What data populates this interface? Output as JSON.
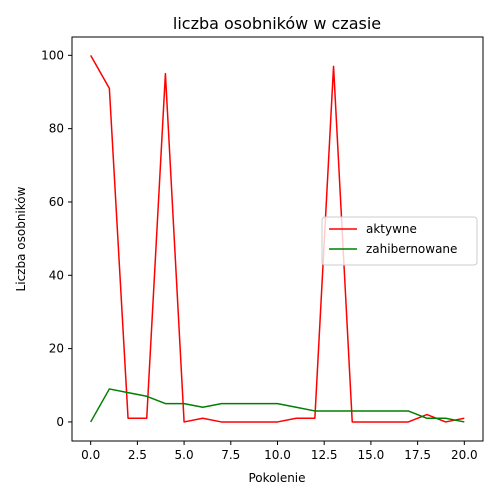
{
  "chart_data": {
    "type": "line",
    "title": "liczba osobników w czasie",
    "xlabel": "Pokolenie",
    "ylabel": "Liczba osobników",
    "x": [
      0,
      1,
      2,
      3,
      4,
      5,
      6,
      7,
      8,
      9,
      10,
      11,
      12,
      13,
      14,
      15,
      16,
      17,
      18,
      19,
      20
    ],
    "series": [
      {
        "name": "aktywne",
        "color": "#ff0000",
        "values": [
          100,
          91,
          1,
          1,
          95,
          0,
          1,
          0,
          0,
          0,
          0,
          1,
          1,
          97,
          0,
          0,
          0,
          0,
          2,
          0,
          1
        ]
      },
      {
        "name": "zahibernowane",
        "color": "#008000",
        "values": [
          0,
          9,
          8,
          7,
          5,
          5,
          4,
          5,
          5,
          5,
          5,
          4,
          3,
          3,
          3,
          3,
          3,
          3,
          1,
          1,
          0
        ]
      }
    ],
    "xlim": [
      -1,
      21
    ],
    "ylim": [
      -5.2,
      105
    ],
    "xticks": [
      0.0,
      2.5,
      5.0,
      7.5,
      10.0,
      12.5,
      15.0,
      17.5,
      20.0
    ],
    "xtick_labels": [
      "0.0",
      "2.5",
      "5.0",
      "7.5",
      "10.0",
      "12.5",
      "15.0",
      "17.5",
      "20.0"
    ],
    "yticks": [
      0,
      20,
      40,
      60,
      80,
      100
    ],
    "ytick_labels": [
      "0",
      "20",
      "40",
      "60",
      "80",
      "100"
    ],
    "grid": false,
    "legend_position": "center-right"
  }
}
